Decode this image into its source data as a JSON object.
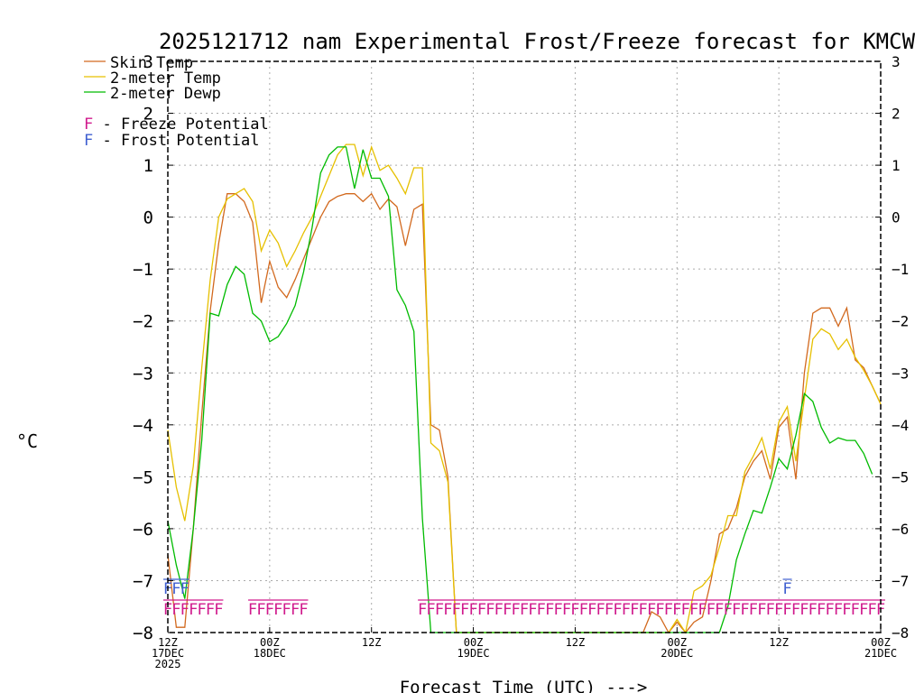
{
  "chart_data": {
    "type": "line",
    "title": "2025121712 nam Experimental Frost/Freeze forecast for KMCW",
    "xlabel": "Forecast Time (UTC) --->",
    "ylabel": "°C",
    "ylim": [
      -8,
      3
    ],
    "xlim": [
      0,
      84
    ],
    "grid": true,
    "y_ticks": [
      3,
      2,
      1,
      0,
      -1,
      -2,
      -3,
      -4,
      -5,
      -6,
      -7,
      -8
    ],
    "y_tick_labels": [
      "3",
      "2",
      "1",
      "0",
      "−1",
      "−2",
      "−3",
      "−4",
      "−5",
      "−6",
      "−7",
      "−8"
    ],
    "x_ticks": [
      {
        "hour": 0,
        "lines": [
          "12Z",
          "17DEC",
          "2025"
        ]
      },
      {
        "hour": 12,
        "lines": [
          "00Z",
          "18DEC"
        ]
      },
      {
        "hour": 24,
        "lines": [
          "12Z"
        ]
      },
      {
        "hour": 36,
        "lines": [
          "00Z",
          "19DEC"
        ]
      },
      {
        "hour": 48,
        "lines": [
          "12Z"
        ]
      },
      {
        "hour": 60,
        "lines": [
          "00Z",
          "20DEC"
        ]
      },
      {
        "hour": 72,
        "lines": [
          "12Z"
        ]
      },
      {
        "hour": 84,
        "lines": [
          "00Z",
          "21DEC"
        ]
      }
    ],
    "legend": [
      {
        "label": "Skin Temp",
        "color": "#d2691e"
      },
      {
        "label": "2-meter Temp",
        "color": "#e6c000"
      },
      {
        "label": "2-meter Dewp",
        "color": "#00bb00"
      }
    ],
    "markers_legend": [
      {
        "letter": "F",
        "text": " - Freeze Potential",
        "color": "#d0198c"
      },
      {
        "letter": "F",
        "text": " - Frost Potential",
        "color": "#3f5fd0"
      }
    ],
    "series": [
      {
        "name": "Skin Temp",
        "color": "#d2691e",
        "points": [
          [
            0,
            -6.5
          ],
          [
            1,
            -7.9
          ],
          [
            2,
            -7.9
          ],
          [
            3,
            -6.0
          ],
          [
            4,
            -3.8
          ],
          [
            5,
            -1.8
          ],
          [
            6,
            -0.5
          ],
          [
            7,
            0.45
          ],
          [
            8,
            0.45
          ],
          [
            9,
            0.3
          ],
          [
            10,
            -0.1
          ],
          [
            11,
            -1.65
          ],
          [
            12,
            -0.85
          ],
          [
            13,
            -1.35
          ],
          [
            14,
            -1.55
          ],
          [
            15,
            -1.2
          ],
          [
            16,
            -0.8
          ],
          [
            17,
            -0.4
          ],
          [
            18,
            0.0
          ],
          [
            19,
            0.3
          ],
          [
            20,
            0.4
          ],
          [
            21,
            0.45
          ],
          [
            22,
            0.45
          ],
          [
            23,
            0.3
          ],
          [
            24,
            0.45
          ],
          [
            25,
            0.15
          ],
          [
            26,
            0.35
          ],
          [
            27,
            0.2
          ],
          [
            28,
            -0.55
          ],
          [
            29,
            0.15
          ],
          [
            30,
            0.25
          ],
          [
            31,
            -4.0
          ],
          [
            32,
            -4.1
          ],
          [
            33,
            -5.0
          ],
          [
            34,
            -8.0
          ],
          [
            56,
            -8.0
          ],
          [
            57,
            -7.6
          ],
          [
            58,
            -7.7
          ],
          [
            59,
            -8.0
          ],
          [
            60,
            -7.8
          ],
          [
            61,
            -8.0
          ],
          [
            62,
            -7.8
          ],
          [
            63,
            -7.7
          ],
          [
            64,
            -7.0
          ],
          [
            65,
            -6.1
          ],
          [
            66,
            -6.0
          ],
          [
            67,
            -5.6
          ],
          [
            68,
            -5.0
          ],
          [
            69,
            -4.7
          ],
          [
            70,
            -4.5
          ],
          [
            71,
            -5.05
          ],
          [
            72,
            -4.05
          ],
          [
            73,
            -3.85
          ],
          [
            74,
            -5.05
          ],
          [
            75,
            -3.0
          ],
          [
            76,
            -1.85
          ],
          [
            77,
            -1.75
          ],
          [
            78,
            -1.75
          ],
          [
            79,
            -2.1
          ],
          [
            80,
            -1.75
          ],
          [
            81,
            -2.75
          ],
          [
            82,
            -2.9
          ],
          [
            83,
            -3.25
          ],
          [
            84,
            -3.6
          ]
        ]
      },
      {
        "name": "2-meter Temp",
        "color": "#e6c000",
        "points": [
          [
            0,
            -4.1
          ],
          [
            1,
            -5.2
          ],
          [
            2,
            -5.85
          ],
          [
            3,
            -4.8
          ],
          [
            4,
            -2.9
          ],
          [
            5,
            -1.2
          ],
          [
            6,
            0.0
          ],
          [
            7,
            0.35
          ],
          [
            8,
            0.45
          ],
          [
            9,
            0.55
          ],
          [
            10,
            0.3
          ],
          [
            11,
            -0.65
          ],
          [
            12,
            -0.25
          ],
          [
            13,
            -0.5
          ],
          [
            14,
            -0.95
          ],
          [
            15,
            -0.65
          ],
          [
            16,
            -0.3
          ],
          [
            17,
            0.0
          ],
          [
            18,
            0.4
          ],
          [
            19,
            0.8
          ],
          [
            20,
            1.2
          ],
          [
            21,
            1.4
          ],
          [
            22,
            1.4
          ],
          [
            23,
            0.8
          ],
          [
            24,
            1.35
          ],
          [
            25,
            0.9
          ],
          [
            26,
            1.0
          ],
          [
            27,
            0.75
          ],
          [
            28,
            0.45
          ],
          [
            29,
            0.95
          ],
          [
            30,
            0.95
          ],
          [
            31,
            -4.35
          ],
          [
            32,
            -4.5
          ],
          [
            33,
            -5.1
          ],
          [
            34,
            -8.0
          ],
          [
            59,
            -8.0
          ],
          [
            60,
            -7.75
          ],
          [
            61,
            -8.0
          ],
          [
            62,
            -7.2
          ],
          [
            63,
            -7.1
          ],
          [
            64,
            -6.9
          ],
          [
            65,
            -6.35
          ],
          [
            66,
            -5.75
          ],
          [
            67,
            -5.75
          ],
          [
            68,
            -4.9
          ],
          [
            69,
            -4.6
          ],
          [
            70,
            -4.25
          ],
          [
            71,
            -4.85
          ],
          [
            72,
            -3.95
          ],
          [
            73,
            -3.65
          ],
          [
            74,
            -4.7
          ],
          [
            75,
            -3.5
          ],
          [
            76,
            -2.35
          ],
          [
            77,
            -2.15
          ],
          [
            78,
            -2.25
          ],
          [
            79,
            -2.55
          ],
          [
            80,
            -2.35
          ],
          [
            81,
            -2.7
          ],
          [
            82,
            -2.95
          ],
          [
            83,
            -3.25
          ],
          [
            84,
            -3.6
          ]
        ]
      },
      {
        "name": "2-meter Dewp",
        "color": "#00bb00",
        "points": [
          [
            0,
            -5.85
          ],
          [
            1,
            -6.7
          ],
          [
            2,
            -7.35
          ],
          [
            3,
            -6.0
          ],
          [
            4,
            -4.3
          ],
          [
            5,
            -1.85
          ],
          [
            6,
            -1.9
          ],
          [
            7,
            -1.3
          ],
          [
            8,
            -0.95
          ],
          [
            9,
            -1.1
          ],
          [
            10,
            -1.85
          ],
          [
            11,
            -2.0
          ],
          [
            12,
            -2.4
          ],
          [
            13,
            -2.3
          ],
          [
            14,
            -2.05
          ],
          [
            15,
            -1.7
          ],
          [
            16,
            -1.05
          ],
          [
            17,
            -0.2
          ],
          [
            18,
            0.85
          ],
          [
            19,
            1.2
          ],
          [
            20,
            1.35
          ],
          [
            21,
            1.35
          ],
          [
            22,
            0.55
          ],
          [
            23,
            1.3
          ],
          [
            24,
            0.75
          ],
          [
            25,
            0.75
          ],
          [
            26,
            0.4
          ],
          [
            27,
            -1.4
          ],
          [
            28,
            -1.7
          ],
          [
            29,
            -2.2
          ],
          [
            30,
            -5.8
          ],
          [
            31,
            -8.0
          ],
          [
            65,
            -8.0
          ],
          [
            66,
            -7.5
          ],
          [
            67,
            -6.6
          ],
          [
            68,
            -6.1
          ],
          [
            69,
            -5.65
          ],
          [
            70,
            -5.7
          ],
          [
            71,
            -5.2
          ],
          [
            72,
            -4.65
          ],
          [
            73,
            -4.85
          ],
          [
            74,
            -4.2
          ],
          [
            75,
            -3.4
          ],
          [
            76,
            -3.55
          ],
          [
            77,
            -4.05
          ],
          [
            78,
            -4.35
          ],
          [
            79,
            -4.25
          ],
          [
            80,
            -4.3
          ],
          [
            81,
            -4.3
          ],
          [
            82,
            -4.55
          ],
          [
            83,
            -4.95
          ]
        ]
      }
    ],
    "freeze_marks": [
      {
        "start": 0,
        "end": 6,
        "letter": "F",
        "color": "#d0198c"
      },
      {
        "start": 10,
        "end": 16,
        "letter": "F",
        "color": "#d0198c"
      },
      {
        "start": 30,
        "end": 84,
        "letter": "F",
        "color": "#d0198c"
      }
    ],
    "frost_marks": [
      {
        "start": 0,
        "end": 2,
        "letter": "F",
        "color": "#3f5fd0"
      },
      {
        "start": 73,
        "end": 73,
        "letter": "F",
        "color": "#3f5fd0"
      }
    ]
  }
}
